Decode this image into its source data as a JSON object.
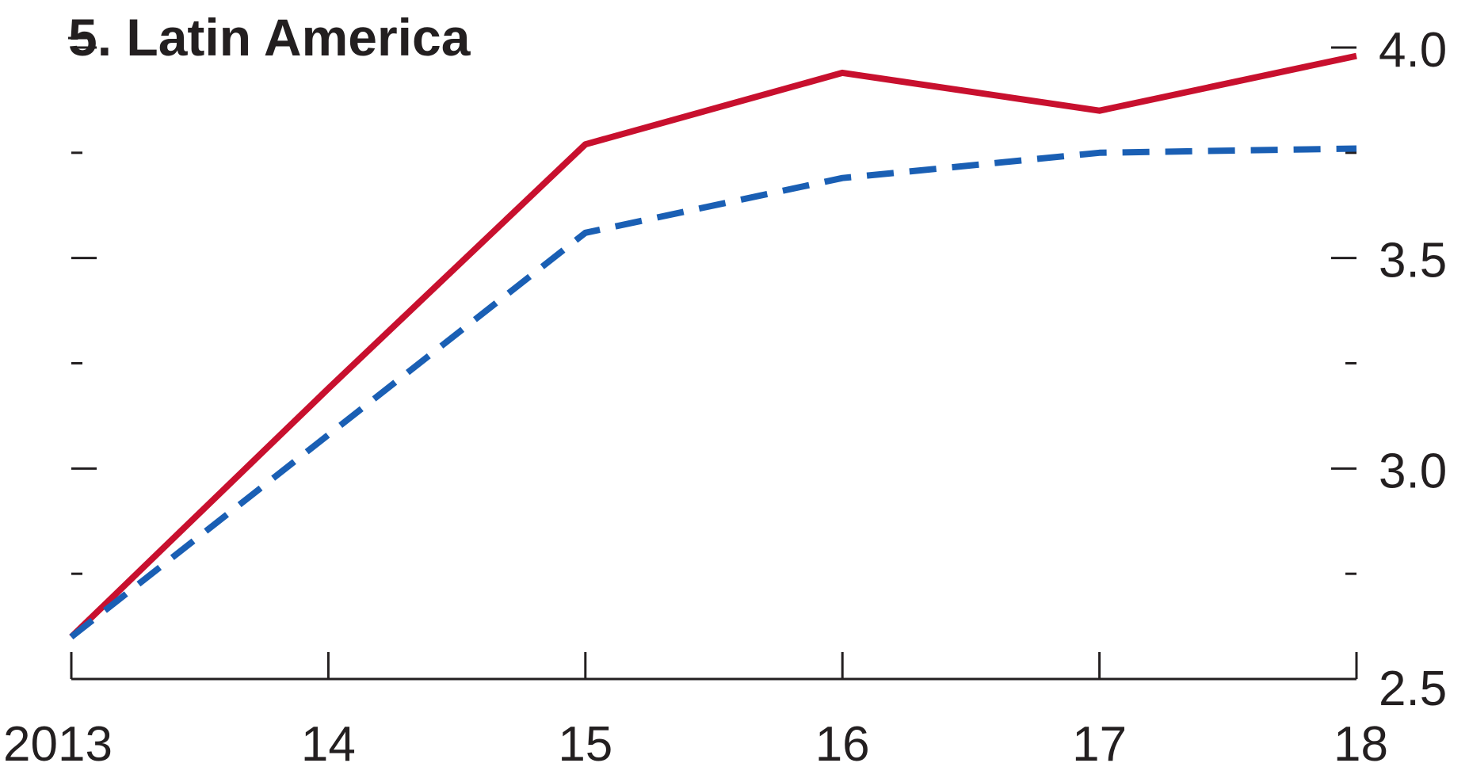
{
  "chart_data": {
    "type": "line",
    "title": "5. Latin America",
    "x": [
      "2013",
      "14",
      "15",
      "16",
      "17",
      "18"
    ],
    "series": [
      {
        "values": [
          2.6,
          3.19,
          3.77,
          3.94,
          3.85,
          3.98
        ],
        "color": "#c8102e",
        "style": "solid"
      },
      {
        "values": [
          2.6,
          3.08,
          3.56,
          3.69,
          3.75,
          3.76
        ],
        "color": "#1a5fb4",
        "style": "dashed"
      }
    ],
    "yaxis_right": {
      "ticks": [
        "4.0",
        "3.5",
        "3.0",
        "2.5"
      ],
      "values": [
        4.0,
        3.5,
        3.0,
        2.5
      ]
    },
    "ylim": [
      2.5,
      4.0
    ],
    "minor_ticks": [
      2.75,
      3.25,
      3.75
    ],
    "grid": false,
    "legend": "none"
  }
}
